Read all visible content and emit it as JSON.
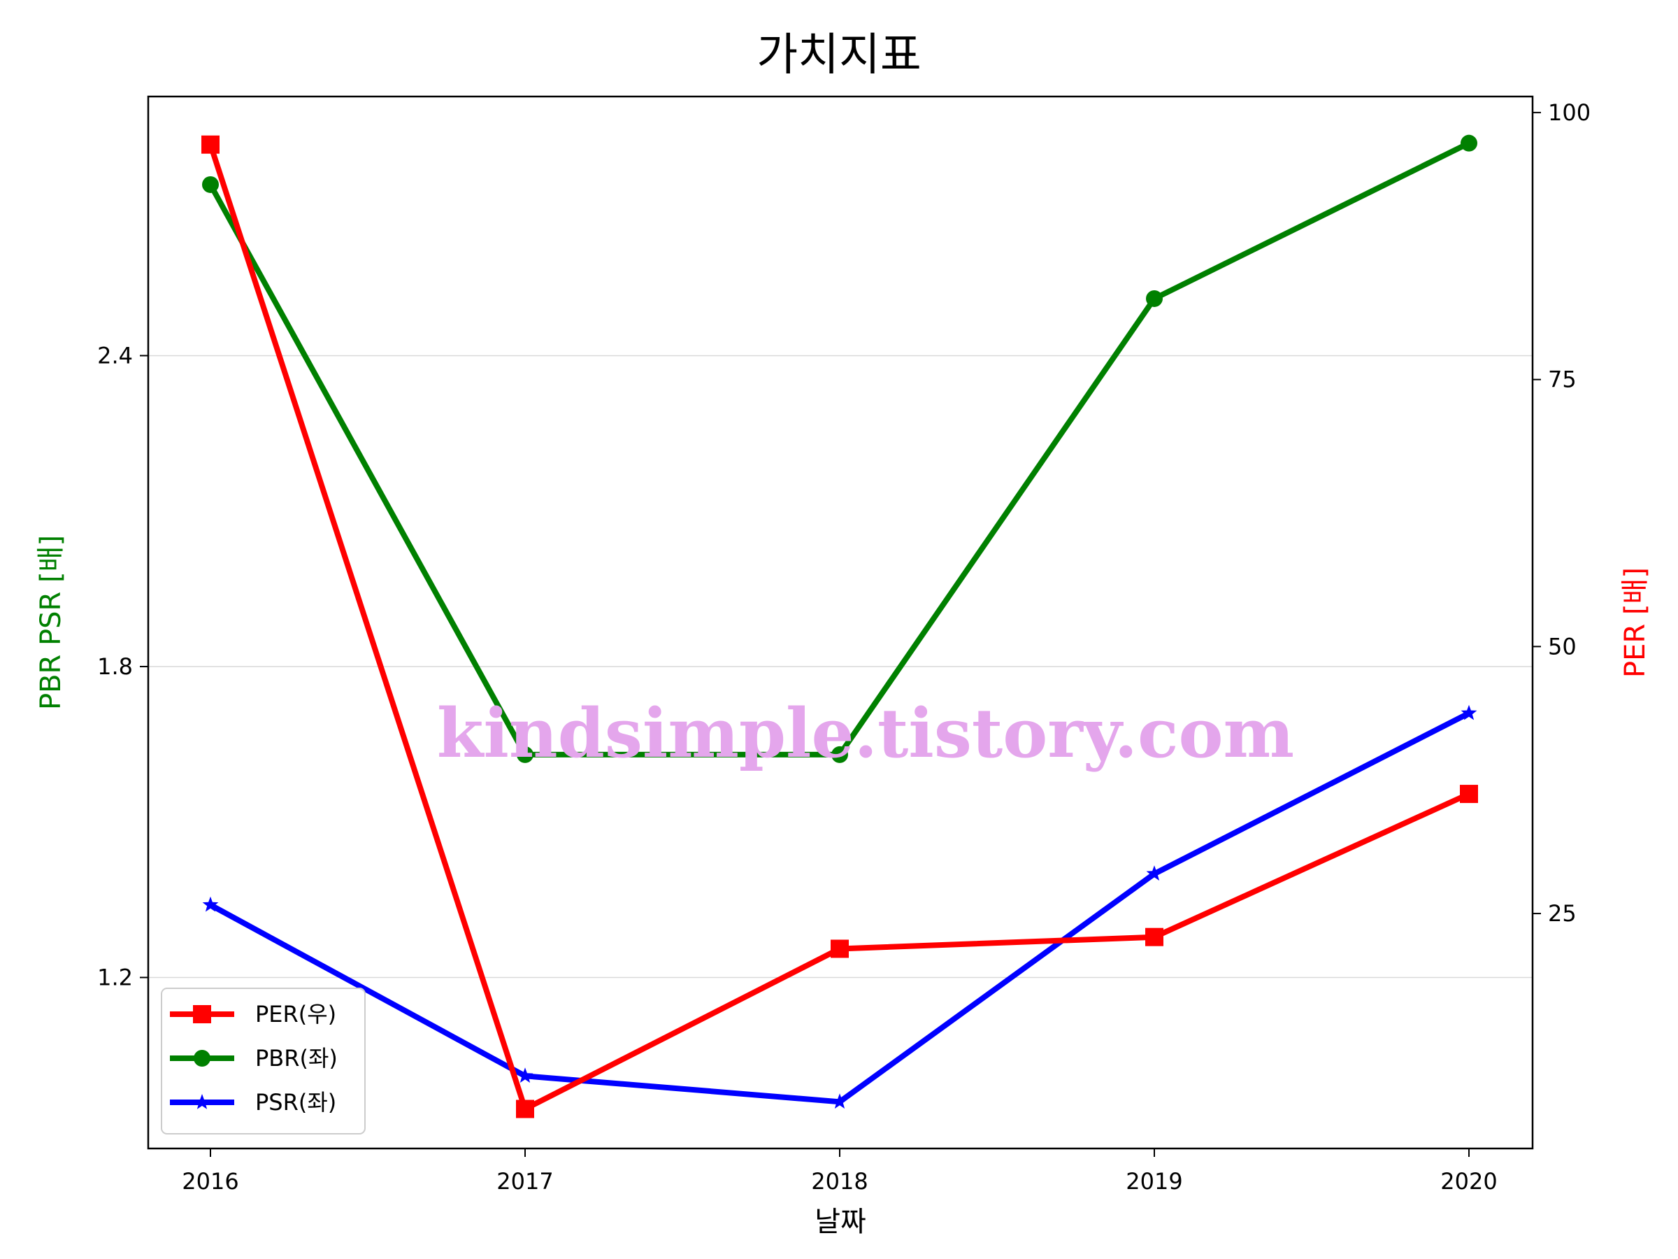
{
  "chart_data": {
    "type": "line",
    "title": "가치지표",
    "xlabel": "날짜",
    "ylabel_left": "PBR PSR [배]",
    "ylabel_right": "PER [배]",
    "categories": [
      "2016",
      "2017",
      "2018",
      "2019",
      "2020"
    ],
    "left_axis": {
      "ylim": [
        0.87,
        2.9
      ],
      "ticks": [
        1.2,
        1.8,
        2.4
      ],
      "tick_labels": [
        "1.2",
        "1.8",
        "2.4"
      ]
    },
    "right_axis": {
      "ylim": [
        3,
        101.5
      ],
      "ticks": [
        25,
        50,
        75,
        100
      ],
      "tick_labels": [
        "25",
        "50",
        "75",
        "100"
      ]
    },
    "grid": "horizontal (left axis ticks)",
    "legend_position": "lower-left",
    "series": [
      {
        "name": "PER(우)",
        "axis": "right",
        "color": "#ff0000",
        "marker": "square",
        "values": [
          97,
          6.7,
          21.7,
          22.8,
          36.2
        ]
      },
      {
        "name": "PBR(좌)",
        "axis": "left",
        "color": "#008000",
        "marker": "circle",
        "values": [
          2.73,
          1.63,
          1.63,
          2.51,
          2.81
        ]
      },
      {
        "name": "PSR(좌)",
        "axis": "left",
        "color": "#0000ff",
        "marker": "star",
        "values": [
          1.34,
          1.01,
          0.96,
          1.4,
          1.71
        ]
      }
    ],
    "watermark": "kindsimple.tistory.com"
  }
}
